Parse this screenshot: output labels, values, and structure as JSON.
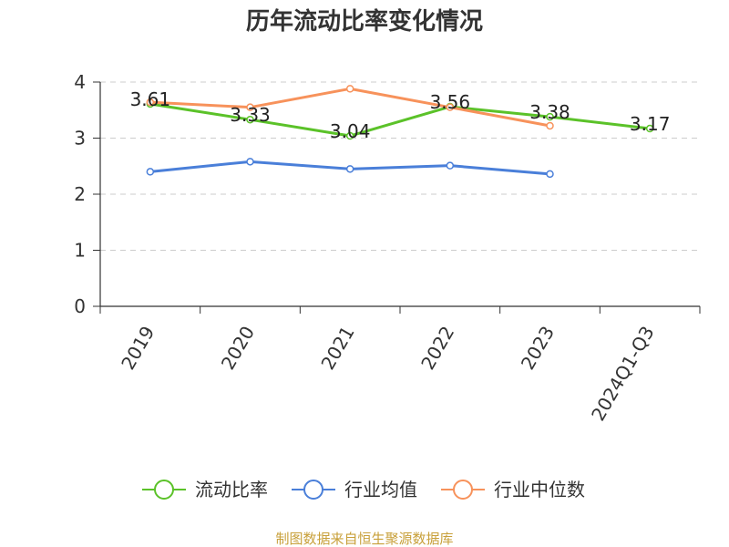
{
  "chart_data": {
    "type": "line",
    "title": "历年流动比率变化情况",
    "categories": [
      "2019",
      "2020",
      "2021",
      "2022",
      "2023",
      "2024Q1-Q3"
    ],
    "ylim": [
      0,
      4
    ],
    "yticks": [
      0,
      1,
      2,
      3,
      4
    ],
    "grid": true,
    "legend_position": "bottom",
    "series": [
      {
        "name": "流动比率",
        "color": "#5bc229",
        "values": [
          3.61,
          3.33,
          3.04,
          3.56,
          3.38,
          3.17
        ],
        "labels": [
          "3.61",
          "3.33",
          "3.04",
          "3.56",
          "3.38",
          "3.17"
        ]
      },
      {
        "name": "行业均值",
        "color": "#4a7fd9",
        "values": [
          2.4,
          2.58,
          2.45,
          2.51,
          2.36,
          null
        ]
      },
      {
        "name": "行业中位数",
        "color": "#f7925b",
        "values": [
          3.64,
          3.55,
          3.88,
          3.55,
          3.22,
          null
        ]
      }
    ]
  },
  "footer": {
    "source": "制图数据来自恒生聚源数据库",
    "color": "#c8a03a"
  }
}
